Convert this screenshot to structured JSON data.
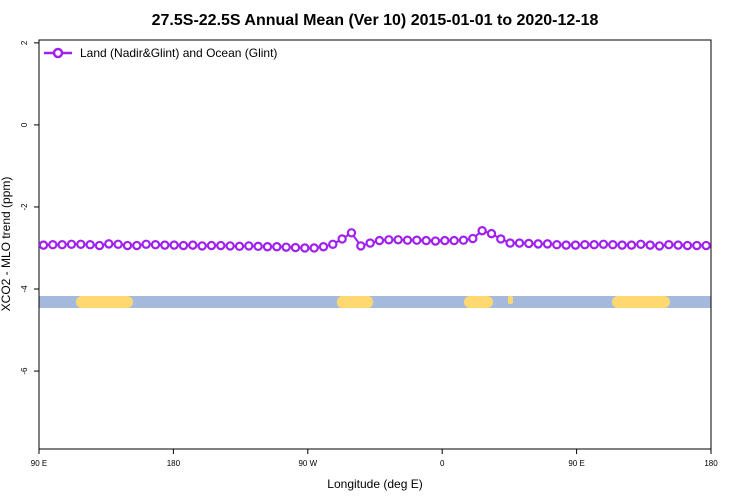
{
  "chart_data": {
    "type": "line",
    "title": "27.5S-22.5S Annual Mean (Ver 10)   2015-01-01 to 2020-12-18",
    "x_label": "Longitude (deg E)",
    "y_label": "XCO2 - MLO trend (ppm)",
    "x": [
      93,
      99.25,
      105.5,
      111.75,
      118,
      124.25,
      130.5,
      136.75,
      143,
      149.25,
      155.5,
      161.75,
      168,
      174.25,
      180.5,
      186.75,
      193,
      199.25,
      205.5,
      211.75,
      218,
      224.25,
      230.5,
      236.75,
      243,
      249.25,
      255.5,
      261.75,
      268,
      274.25,
      280.5,
      286.75,
      293,
      299.25,
      305.5,
      311.75,
      318,
      324.25,
      330.5,
      336.75,
      343,
      349.25,
      355.5,
      361.75,
      368,
      374.25,
      380.5,
      386.75,
      393,
      399.25,
      405.5,
      411.75,
      418,
      424.25,
      430.5,
      436.75,
      443,
      449.25,
      455.5,
      461.75,
      468,
      474.25,
      480.5,
      486.75,
      493,
      499.25,
      505.5,
      511.75,
      518,
      524.25,
      530.5,
      536.75
    ],
    "series": [
      {
        "name": "Land (Nadir&Glint) and Ocean (Glint)",
        "color": "#a020f0",
        "values": [
          -2.93,
          -2.92,
          -2.92,
          -2.91,
          -2.91,
          -2.92,
          -2.94,
          -2.9,
          -2.91,
          -2.94,
          -2.94,
          -2.91,
          -2.92,
          -2.93,
          -2.93,
          -2.94,
          -2.93,
          -2.95,
          -2.94,
          -2.94,
          -2.95,
          -2.96,
          -2.95,
          -2.96,
          -2.97,
          -2.97,
          -2.98,
          -2.99,
          -3.0,
          -3.0,
          -2.97,
          -2.91,
          -2.78,
          -2.63,
          -2.95,
          -2.88,
          -2.82,
          -2.8,
          -2.8,
          -2.81,
          -2.81,
          -2.82,
          -2.83,
          -2.82,
          -2.82,
          -2.81,
          -2.77,
          -2.58,
          -2.65,
          -2.78,
          -2.88,
          -2.88,
          -2.89,
          -2.9,
          -2.9,
          -2.92,
          -2.93,
          -2.93,
          -2.92,
          -2.92,
          -2.91,
          -2.92,
          -2.93,
          -2.93,
          -2.91,
          -2.93,
          -2.95,
          -2.92,
          -2.93,
          -2.94,
          -2.94,
          -2.94
        ]
      }
    ],
    "xlim": [
      90,
      540
    ],
    "xticks": [
      {
        "value": 90,
        "label": "90 E"
      },
      180,
      {
        "value": 270,
        "label": "90 W"
      },
      {
        "value": 360,
        "label": "0"
      },
      {
        "value": 450,
        "label": "90 E"
      },
      {
        "value": 540,
        "label": "180"
      }
    ],
    "ylim": [
      -7.9,
      2.07
    ],
    "yticks": [
      2,
      0,
      -2,
      -4,
      -6
    ],
    "legend": "top-left"
  }
}
